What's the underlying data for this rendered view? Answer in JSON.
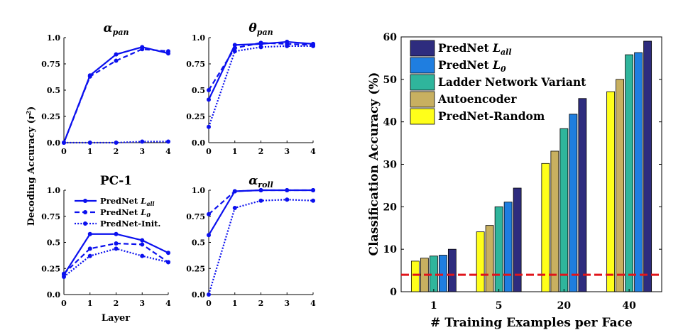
{
  "chart_data": [
    {
      "type": "line",
      "title": "α_pan",
      "title_main": "α",
      "title_sub": "pan",
      "x": [
        0,
        1,
        2,
        3,
        4
      ],
      "xticks": [
        "0",
        "1",
        "2",
        "3",
        "4"
      ],
      "yticks": [
        "0.0",
        "0.25",
        "0.5",
        "0.75",
        "1.0"
      ],
      "ylim": [
        0,
        1
      ],
      "xlabel": "",
      "ylabel": "",
      "series": [
        {
          "name": "PredNet L_all",
          "style": "solid",
          "values": [
            0.0,
            0.64,
            0.84,
            0.91,
            0.85
          ]
        },
        {
          "name": "PredNet L_0",
          "style": "dashed",
          "values": [
            0.0,
            0.63,
            0.78,
            0.89,
            0.87
          ]
        },
        {
          "name": "PredNet-Init.",
          "style": "dotted",
          "values": [
            0.0,
            0.0,
            0.0,
            0.01,
            0.01
          ]
        }
      ]
    },
    {
      "type": "line",
      "title": "θ_pan",
      "title_main": "θ",
      "title_sub": "pan",
      "x": [
        0,
        1,
        2,
        3,
        4
      ],
      "xticks": [
        "0",
        "1",
        "2",
        "3",
        "4"
      ],
      "yticks": [
        "0.0",
        "0.25",
        "0.5",
        "0.75",
        "1.0"
      ],
      "ylim": [
        0,
        1
      ],
      "series": [
        {
          "name": "PredNet L_all",
          "style": "solid",
          "values": [
            0.41,
            0.93,
            0.94,
            0.96,
            0.94
          ]
        },
        {
          "name": "PredNet L_0",
          "style": "dashed",
          "values": [
            0.5,
            0.9,
            0.95,
            0.94,
            0.93
          ]
        },
        {
          "name": "PredNet-Init.",
          "style": "dotted",
          "values": [
            0.15,
            0.87,
            0.91,
            0.92,
            0.92
          ]
        }
      ]
    },
    {
      "type": "line",
      "title": "PC-1",
      "x": [
        0,
        1,
        2,
        3,
        4
      ],
      "xticks": [
        "0",
        "1",
        "2",
        "3",
        "4"
      ],
      "yticks": [
        "0.0",
        "0.25",
        "0.5",
        "0.75",
        "1.0"
      ],
      "ylim": [
        0,
        1
      ],
      "legend_position": "top-right",
      "series": [
        {
          "name": "PredNet L_all",
          "style": "solid",
          "values": [
            0.19,
            0.58,
            0.58,
            0.52,
            0.4
          ]
        },
        {
          "name": "PredNet L_0",
          "style": "dashed",
          "values": [
            0.2,
            0.44,
            0.49,
            0.48,
            0.31
          ]
        },
        {
          "name": "PredNet-Init.",
          "style": "dotted",
          "values": [
            0.17,
            0.37,
            0.44,
            0.37,
            0.31
          ]
        }
      ]
    },
    {
      "type": "line",
      "title": "α_roll",
      "title_main": "α",
      "title_sub": "roll",
      "x": [
        0,
        1,
        2,
        3,
        4
      ],
      "xticks": [
        "0",
        "1",
        "2",
        "3",
        "4"
      ],
      "yticks": [
        "0.0",
        "0.25",
        "0.5",
        "0.75",
        "1.0"
      ],
      "ylim": [
        0,
        1
      ],
      "series": [
        {
          "name": "PredNet L_all",
          "style": "solid",
          "values": [
            0.57,
            0.99,
            1.0,
            1.0,
            1.0
          ]
        },
        {
          "name": "PredNet L_0",
          "style": "dashed",
          "values": [
            0.77,
            0.99,
            1.0,
            1.0,
            1.0
          ]
        },
        {
          "name": "PredNet-Init.",
          "style": "dotted",
          "values": [
            0.0,
            0.83,
            0.9,
            0.91,
            0.9
          ]
        }
      ]
    },
    {
      "type": "bar",
      "categories": [
        "1",
        "5",
        "20",
        "40"
      ],
      "xlabel": "# Training Examples per Face",
      "ylabel": "Classification Accuracy (%)",
      "ylim": [
        0,
        60
      ],
      "yticks": [
        "0",
        "10",
        "20",
        "30",
        "40",
        "50",
        "60"
      ],
      "legend_position": "top-left",
      "chance_level": 4,
      "series": [
        {
          "name": "PredNet-Random",
          "color": "#ffff1a",
          "values": [
            7.2,
            14.1,
            30.2,
            47.1
          ]
        },
        {
          "name": "Autoencoder",
          "color": "#c8b060",
          "values": [
            7.9,
            15.6,
            33.1,
            50.0
          ]
        },
        {
          "name": "Ladder Network Variant",
          "color": "#2fb59c",
          "values": [
            8.4,
            20.0,
            38.4,
            55.8
          ]
        },
        {
          "name": "PredNet L_0",
          "color": "#1f7ee0",
          "values": [
            8.6,
            21.1,
            41.8,
            56.3
          ]
        },
        {
          "name": "PredNet L_all",
          "color": "#2e2c7e",
          "values": [
            10.0,
            24.4,
            45.5,
            59.0
          ]
        }
      ],
      "legend": [
        {
          "main": "PredNet ",
          "ital": "L",
          "sub": "all",
          "color": "#2e2c7e"
        },
        {
          "main": "PredNet ",
          "ital": "L",
          "sub": "0",
          "color": "#1f7ee0"
        },
        {
          "main": "Ladder Network Variant",
          "color": "#2fb59c"
        },
        {
          "main": "Autoencoder",
          "color": "#c8b060"
        },
        {
          "main": "PredNet-Random",
          "color": "#ffff1a"
        }
      ]
    }
  ],
  "shared": {
    "ylabel_main": "Decoding Accuracy (",
    "ylabel_ital": "r",
    "ylabel_sup": "2",
    "ylabel_end": ")",
    "xlabel": "Layer",
    "line_color": "#0b10ee",
    "legend": [
      {
        "main": "PredNet ",
        "ital": "L",
        "sub": "all",
        "style": "solid"
      },
      {
        "main": "PredNet ",
        "ital": "L",
        "sub": "0",
        "style": "dashed"
      },
      {
        "main": "PredNet-Init.",
        "style": "dotted"
      }
    ]
  }
}
